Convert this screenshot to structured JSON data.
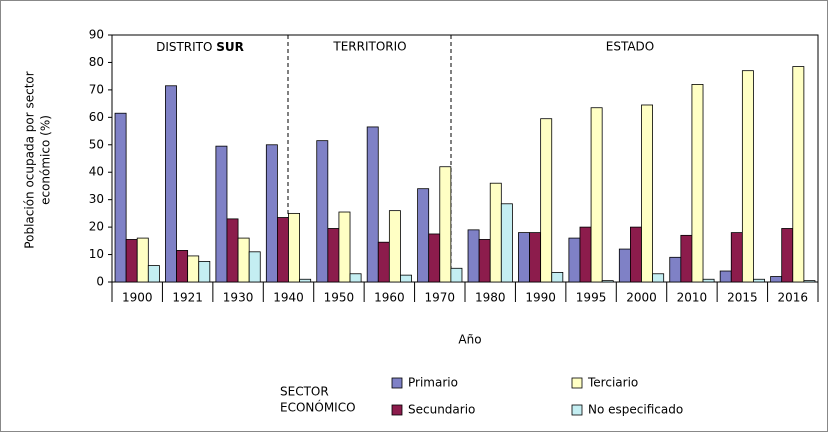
{
  "chart_data": {
    "type": "bar",
    "categories": [
      "1900",
      "1921",
      "1930",
      "1940",
      "1950",
      "1960",
      "1970",
      "1980",
      "1990",
      "1995",
      "2000",
      "2010",
      "2015",
      "2016"
    ],
    "series": [
      {
        "name": "Primario",
        "color": "#7f81c6",
        "values": [
          61.5,
          71.5,
          49.5,
          50,
          51.5,
          56.5,
          34,
          19,
          18,
          16,
          12,
          9,
          4,
          2
        ]
      },
      {
        "name": "Secundario",
        "color": "#8c1c4c",
        "values": [
          15.5,
          11.5,
          23,
          23.5,
          19.5,
          14.5,
          17.5,
          15.5,
          18,
          20,
          20,
          17,
          18,
          19.5
        ]
      },
      {
        "name": "Terciario",
        "color": "#ffffc4",
        "values": [
          16,
          9.5,
          16,
          25,
          25.5,
          26,
          42,
          36,
          59.5,
          63.5,
          64.5,
          72,
          77,
          78.5
        ]
      },
      {
        "name": "No especificado",
        "color": "#c4eef2",
        "values": [
          6,
          7.5,
          11,
          1,
          3,
          2.5,
          5,
          28.5,
          3.5,
          0.5,
          3,
          1,
          1,
          0.5
        ]
      }
    ],
    "ylim": [
      0,
      90
    ],
    "yticks": [
      0,
      10,
      20,
      30,
      40,
      50,
      60,
      70,
      80,
      90
    ],
    "xlabel": "Año",
    "ylabel": [
      "Población ocupada por sector",
      "económico (%)"
    ],
    "legend_title": [
      "SECTOR",
      "ECONÓMICO"
    ],
    "regions": [
      [
        "DISTRITO ",
        "SUR"
      ],
      [
        "TERRITORIO"
      ],
      [
        "ESTADO"
      ]
    ]
  }
}
